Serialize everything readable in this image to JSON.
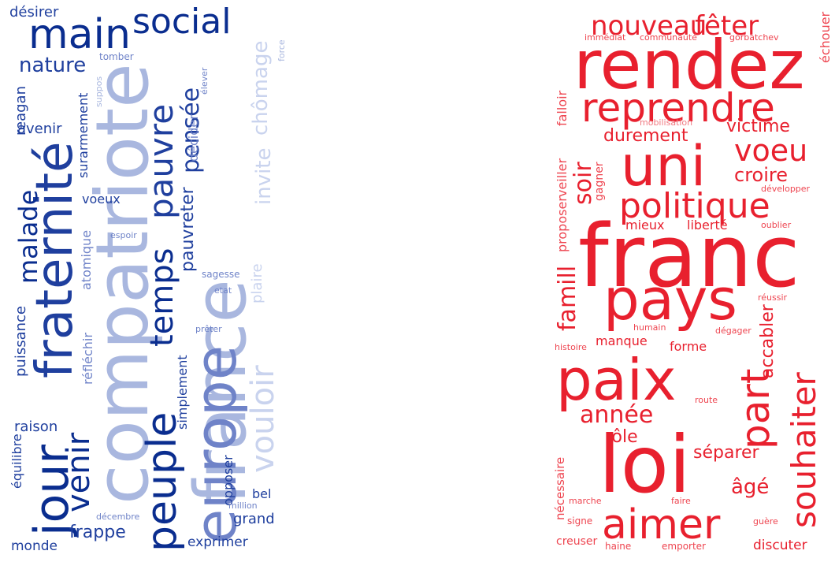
{
  "clouds": [
    {
      "id": "left",
      "palette": [
        "#0a2d8f",
        "#1f3f9e",
        "#6f83c8",
        "#a9b7df",
        "#c9d3ee"
      ],
      "words": [
        {
          "text": "désirer",
          "color": "#1f3f9e"
        },
        {
          "text": "main",
          "color": "#0a2d8f"
        },
        {
          "text": "social",
          "color": "#0a2d8f"
        },
        {
          "text": "force",
          "color": "#a9b7df"
        },
        {
          "text": "nature",
          "color": "#1f3f9e"
        },
        {
          "text": "tomber",
          "color": "#6f83c8"
        },
        {
          "text": "reagan",
          "color": "#1f3f9e"
        },
        {
          "text": "suppos",
          "color": "#a9b7df"
        },
        {
          "text": "surarmement",
          "color": "#1f3f9e"
        },
        {
          "text": "avenir",
          "color": "#1f3f9e"
        },
        {
          "text": "fraternité",
          "color": "#1f3f9e"
        },
        {
          "text": "compatriote",
          "color": "#a9b7df"
        },
        {
          "text": "pauvre",
          "color": "#1f3f9e"
        },
        {
          "text": "pensée",
          "color": "#1f3f9e"
        },
        {
          "text": "décider",
          "color": "#6f83c8"
        },
        {
          "text": "élever",
          "color": "#6f83c8"
        },
        {
          "text": "chômage",
          "color": "#c9d3ee"
        },
        {
          "text": "france",
          "color": "#a9b7df"
        },
        {
          "text": "temps",
          "color": "#0a2d8f"
        },
        {
          "text": "invite",
          "color": "#c9d3ee"
        },
        {
          "text": "malade",
          "color": "#0a2d8f"
        },
        {
          "text": "voeux",
          "color": "#1f3f9e"
        },
        {
          "text": "pauvreter",
          "color": "#1f3f9e"
        },
        {
          "text": "plaire",
          "color": "#c9d3ee"
        },
        {
          "text": "atomique",
          "color": "#6f83c8"
        },
        {
          "text": "espoir",
          "color": "#6f83c8"
        },
        {
          "text": "sagesse",
          "color": "#6f83c8"
        },
        {
          "text": "etat",
          "color": "#6f83c8"
        },
        {
          "text": "puissance",
          "color": "#1f3f9e"
        },
        {
          "text": "réfléchir",
          "color": "#6f83c8"
        },
        {
          "text": "prêter",
          "color": "#6f83c8"
        },
        {
          "text": "vouloir",
          "color": "#c9d3ee"
        },
        {
          "text": "jour",
          "color": "#0a2d8f"
        },
        {
          "text": "europe",
          "color": "#6f83c8"
        },
        {
          "text": "peuple",
          "color": "#0a2d8f"
        },
        {
          "text": "venir",
          "color": "#0a2d8f"
        },
        {
          "text": "simplement",
          "color": "#1f3f9e"
        },
        {
          "text": "raison",
          "color": "#1f3f9e"
        },
        {
          "text": "équilibre",
          "color": "#1f3f9e"
        },
        {
          "text": "opposer",
          "color": "#1f3f9e"
        },
        {
          "text": "bel",
          "color": "#1f3f9e"
        },
        {
          "text": "million",
          "color": "#6f83c8"
        },
        {
          "text": "décembre",
          "color": "#6f83c8"
        },
        {
          "text": "grand",
          "color": "#1f3f9e"
        },
        {
          "text": "frappe",
          "color": "#1f3f9e"
        },
        {
          "text": "monde",
          "color": "#1f3f9e"
        },
        {
          "text": "exprimer",
          "color": "#1f3f9e"
        }
      ]
    },
    {
      "id": "right",
      "palette": [
        "#e8202e",
        "#ee4550",
        "#f07a82"
      ],
      "words": [
        {
          "text": "nouveau",
          "color": "#e8202e"
        },
        {
          "text": "fêter",
          "color": "#e8202e"
        },
        {
          "text": "échouer",
          "color": "#ee4550"
        },
        {
          "text": "immédiat",
          "color": "#ee4550"
        },
        {
          "text": "communauté",
          "color": "#ee4550"
        },
        {
          "text": "gorbatchev",
          "color": "#ee4550"
        },
        {
          "text": "rendez",
          "color": "#e8202e"
        },
        {
          "text": "falloir",
          "color": "#ee4550"
        },
        {
          "text": "reprendre",
          "color": "#e8202e"
        },
        {
          "text": "mobilisation",
          "color": "#f07a82"
        },
        {
          "text": "victime",
          "color": "#e8202e"
        },
        {
          "text": "durement",
          "color": "#e8202e"
        },
        {
          "text": "voeu",
          "color": "#e8202e"
        },
        {
          "text": "uni",
          "color": "#e8202e"
        },
        {
          "text": "veiller",
          "color": "#ee4550"
        },
        {
          "text": "soir",
          "color": "#e8202e"
        },
        {
          "text": "croire",
          "color": "#e8202e"
        },
        {
          "text": "gagner",
          "color": "#ee4550"
        },
        {
          "text": "développer",
          "color": "#ee4550"
        },
        {
          "text": "politique",
          "color": "#e8202e"
        },
        {
          "text": "proposer",
          "color": "#ee4550"
        },
        {
          "text": "mieux",
          "color": "#e8202e"
        },
        {
          "text": "liberté",
          "color": "#e8202e"
        },
        {
          "text": "oublier",
          "color": "#ee4550"
        },
        {
          "text": "franc",
          "color": "#e8202e"
        },
        {
          "text": "famill",
          "color": "#e8202e"
        },
        {
          "text": "pays",
          "color": "#e8202e"
        },
        {
          "text": "réussir",
          "color": "#ee4550"
        },
        {
          "text": "accabler",
          "color": "#e8202e"
        },
        {
          "text": "humain",
          "color": "#ee4550"
        },
        {
          "text": "dégager",
          "color": "#ee4550"
        },
        {
          "text": "manque",
          "color": "#e8202e"
        },
        {
          "text": "histoire",
          "color": "#ee4550"
        },
        {
          "text": "forme",
          "color": "#e8202e"
        },
        {
          "text": "souhaiter",
          "color": "#e8202e"
        },
        {
          "text": "paix",
          "color": "#e8202e"
        },
        {
          "text": "part",
          "color": "#e8202e"
        },
        {
          "text": "route",
          "color": "#ee4550"
        },
        {
          "text": "année",
          "color": "#e8202e"
        },
        {
          "text": "nécessaire",
          "color": "#ee4550"
        },
        {
          "text": "rôle",
          "color": "#e8202e"
        },
        {
          "text": "séparer",
          "color": "#e8202e"
        },
        {
          "text": "loi",
          "color": "#e8202e"
        },
        {
          "text": "âgé",
          "color": "#e8202e"
        },
        {
          "text": "marche",
          "color": "#ee4550"
        },
        {
          "text": "faire",
          "color": "#ee4550"
        },
        {
          "text": "signe",
          "color": "#ee4550"
        },
        {
          "text": "aimer",
          "color": "#e8202e"
        },
        {
          "text": "guère",
          "color": "#ee4550"
        },
        {
          "text": "creuser",
          "color": "#ee4550"
        },
        {
          "text": "haine",
          "color": "#ee4550"
        },
        {
          "text": "emporter",
          "color": "#ee4550"
        },
        {
          "text": "discuter",
          "color": "#e8202e"
        }
      ]
    }
  ]
}
